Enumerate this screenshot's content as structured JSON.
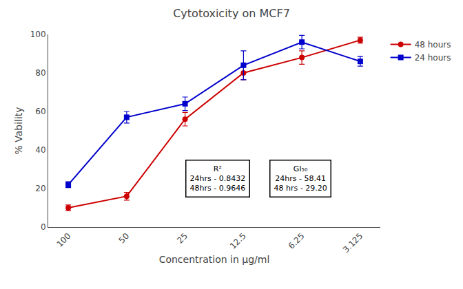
{
  "chart_data": {
    "type": "line",
    "title": "Cytotoxicity on MCF7",
    "xlabel": "Concentration in μg/ml",
    "ylabel": "% Vability",
    "categories": [
      "100",
      "50",
      "25",
      "12.5",
      "6.25",
      "3.125"
    ],
    "series": [
      {
        "name": "48 hours",
        "color": "#cc0000",
        "marker": "circle",
        "values": [
          10,
          16,
          56,
          80,
          88,
          97
        ],
        "errors": [
          1.5,
          2.0,
          3.5,
          3.5,
          3.5,
          1.5
        ]
      },
      {
        "name": "24 hours",
        "color": "#0000cc",
        "marker": "square",
        "values": [
          22,
          57,
          64,
          84,
          96,
          86
        ],
        "errors": [
          1.5,
          3.0,
          3.5,
          7.5,
          3.5,
          2.5
        ]
      }
    ],
    "annotations": [
      "R²\n24hrs - 0.8432\n48hrs - 0.9646",
      "GI₅₀\n24hrs - 58.41\n48 hrs - 29.20"
    ],
    "ylim": [
      0,
      100
    ],
    "yticks": [
      0,
      20,
      40,
      60,
      80,
      100
    ],
    "legend": "upper right",
    "grid": false
  }
}
